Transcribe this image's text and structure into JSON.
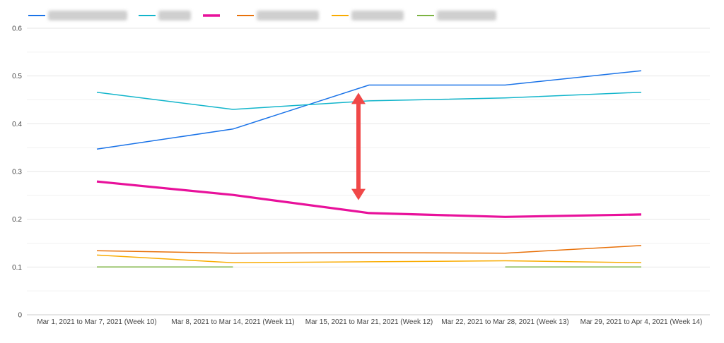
{
  "chart_data": {
    "type": "line",
    "categories": [
      "Mar 1, 2021 to Mar 7, 2021 (Week 10)",
      "Mar 8, 2021 to Mar 14, 2021 (Week 11)",
      "Mar 15, 2021 to Mar 21, 2021 (Week 12)",
      "Mar 22, 2021 to Mar 28, 2021 (Week 13)",
      "Mar 29, 2021 to Apr 4, 2021 (Week 14)"
    ],
    "series": [
      {
        "color": "#1a73e8",
        "values": [
          0.347,
          0.389,
          0.481,
          0.481,
          0.511
        ],
        "emphasis": false
      },
      {
        "color": "#12b5cb",
        "values": [
          0.466,
          0.43,
          0.448,
          0.454,
          0.466
        ],
        "emphasis": false
      },
      {
        "color": "#e8119b",
        "values": [
          0.279,
          0.251,
          0.213,
          0.205,
          0.21
        ],
        "emphasis": true
      },
      {
        "color": "#e8710a",
        "values": [
          0.134,
          0.129,
          0.13,
          0.129,
          0.145
        ],
        "emphasis": false
      },
      {
        "color": "#f9ab00",
        "values": [
          0.125,
          0.109,
          0.111,
          0.113,
          0.109
        ],
        "emphasis": false
      },
      {
        "color": "#7cb342",
        "values": [
          0.1,
          0.1,
          null,
          0.1,
          0.1
        ],
        "emphasis": false
      }
    ],
    "y_ticks": [
      "0",
      "0.1",
      "0.2",
      "0.3",
      "0.4",
      "0.5",
      "0.6"
    ],
    "ylim": [
      0,
      0.6
    ],
    "grid": true,
    "legend": "top-left, entry labels blurred/redacted",
    "annotation": {
      "type": "double-headed-arrow",
      "color": "#f04848",
      "category_index": 2,
      "from_value": 0.465,
      "to_value": 0.24
    }
  }
}
